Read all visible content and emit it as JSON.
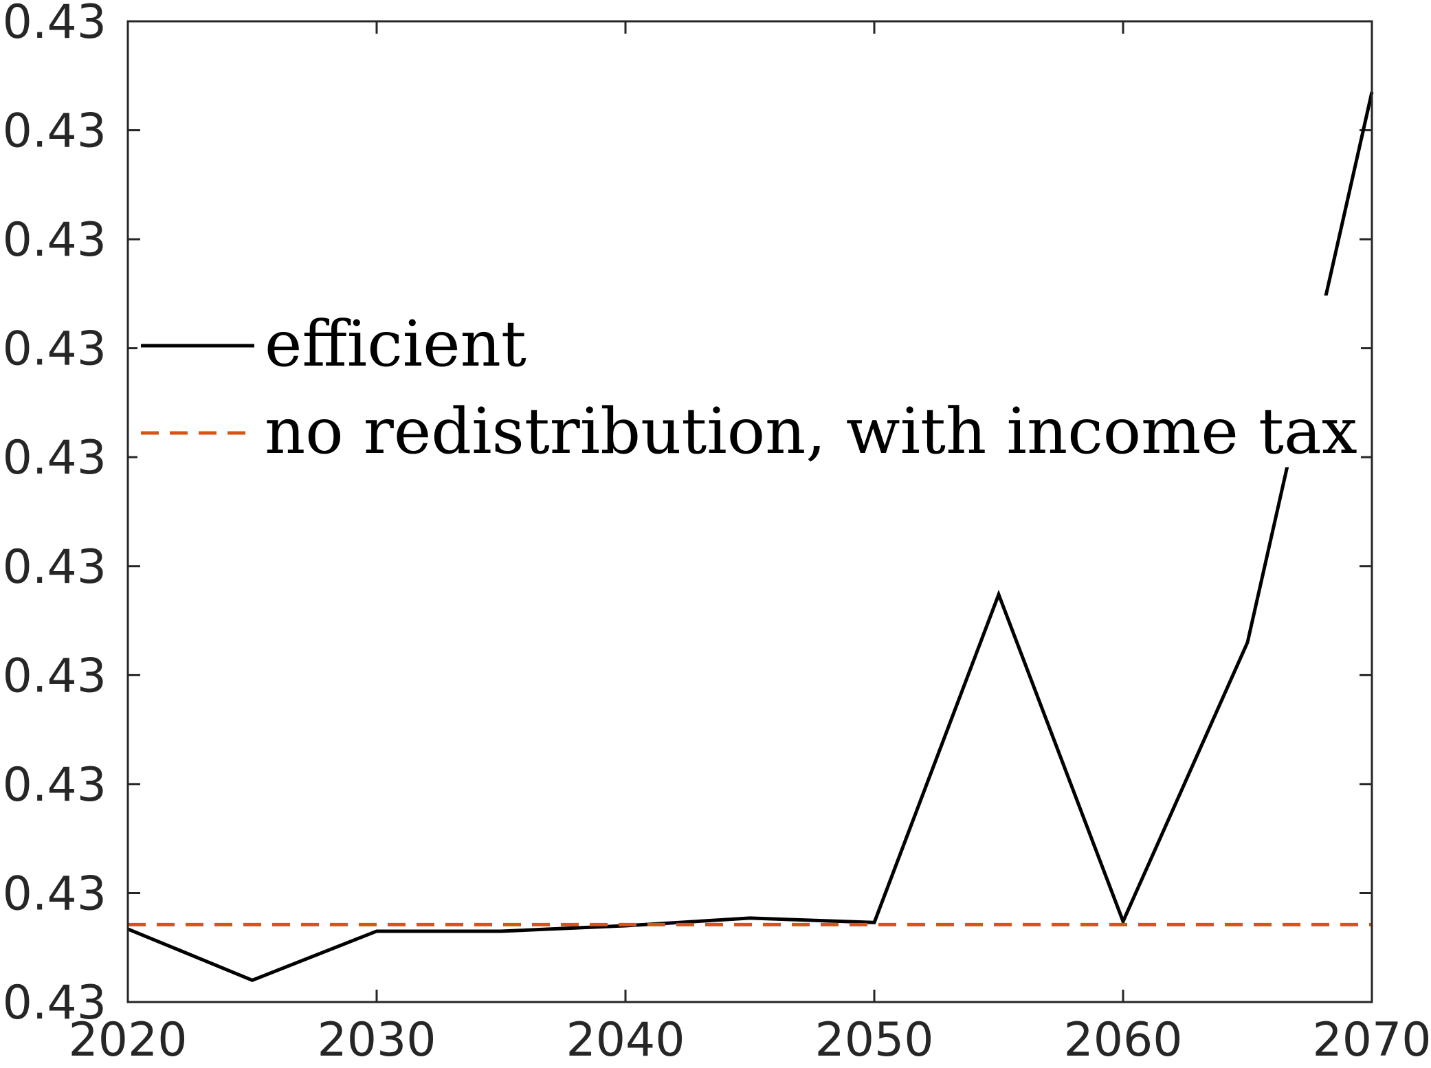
{
  "chart_data": {
    "type": "line",
    "title": "",
    "xlabel": "",
    "ylabel": "",
    "x": [
      2020,
      2025,
      2030,
      2035,
      2040,
      2045,
      2050,
      2055,
      2060,
      2065,
      2070
    ],
    "xlim": [
      2020,
      2070
    ],
    "x_ticks": [
      "2020",
      "2030",
      "2040",
      "2050",
      "2060",
      "2070"
    ],
    "ylim": [
      0,
      9
    ],
    "y_ticks": [
      "0.43",
      "0.43",
      "0.43",
      "0.43",
      "0.43",
      "0.43",
      "0.43",
      "0.43",
      "0.43",
      "0.43"
    ],
    "series": [
      {
        "name": "efficient",
        "color": "#000000",
        "style": "solid",
        "values": [
          0.67,
          0.2,
          0.65,
          0.65,
          0.7,
          0.77,
          0.73,
          3.74,
          0.74,
          3.3,
          8.35
        ]
      },
      {
        "name": "no redistribution, with income tax",
        "color": "#D95319",
        "style": "dashed",
        "values": [
          0.71,
          0.71,
          0.71,
          0.71,
          0.71,
          0.71,
          0.71,
          0.71,
          0.71,
          0.71,
          0.71
        ]
      }
    ],
    "grid": false,
    "legend_position": "upper-left"
  }
}
